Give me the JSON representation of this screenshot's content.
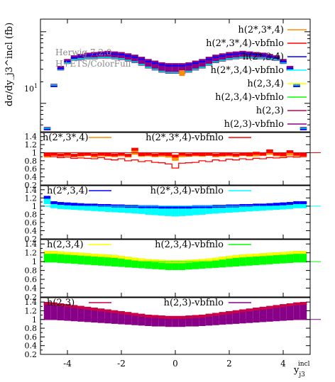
{
  "chart_data": {
    "type": "line",
    "note": "rapidity distribution of tagging-jet-3 with four ratio panels",
    "watermark": [
      "Herwig 7.2.0",
      "H+ETS/ColorFull"
    ],
    "xlabel_main": "y",
    "xlabel_sub": "j3",
    "xlabel_sup": "incl",
    "ylabel": "dσ/dy_j3^incl (fb)",
    "xlim": [
      -5,
      5
    ],
    "xticks": [
      "-4",
      "-2",
      "0",
      "2",
      "4"
    ],
    "xtick_values": [
      -4,
      -2,
      0,
      2,
      4
    ],
    "main": {
      "ylog": true,
      "ylim": [
        4,
        150
      ],
      "ytick_label": "10",
      "ytick_sup": "1",
      "ytick_value": 10,
      "legend": [
        {
          "label": "h(2*,3*,4)",
          "color": "#ff8c00"
        },
        {
          "label": "h(2*,3*,4)-vbfnlo",
          "color": "#ff0000"
        },
        {
          "label": "h(2*,3,4)",
          "color": "#0000ff"
        },
        {
          "label": "h(2*,3,4)-vbfnlo",
          "color": "#00ffff"
        },
        {
          "label": "h(2,3,4)",
          "color": "#ffff00"
        },
        {
          "label": "h(2,3,4)-vbfnlo",
          "color": "#00ff00"
        },
        {
          "label": "h(2,3)",
          "color": "#cc0044"
        },
        {
          "label": "h(2,3)-vbfnlo",
          "color": "#880088"
        }
      ],
      "x": [
        -4.75,
        -4.5,
        -4.25,
        -4.0,
        -3.75,
        -3.5,
        -3.25,
        -3.0,
        -2.75,
        -2.5,
        -2.25,
        -2.0,
        -1.75,
        -1.5,
        -1.25,
        -1.0,
        -0.75,
        -0.5,
        -0.25,
        0.0,
        0.25,
        0.5,
        0.75,
        1.0,
        1.25,
        1.5,
        1.75,
        2.0,
        2.25,
        2.5,
        2.75,
        3.0,
        3.25,
        3.5,
        3.75,
        4.0,
        4.25,
        4.5,
        4.75
      ],
      "series_ref": [
        4.5,
        18,
        32,
        40,
        45,
        47,
        49,
        50,
        51,
        52,
        51,
        50,
        48,
        46,
        43,
        40,
        38,
        36,
        35,
        35,
        35,
        36,
        38,
        40,
        43,
        46,
        48,
        50,
        51,
        52,
        51,
        50,
        49,
        47,
        45,
        40,
        32,
        18,
        4.5
      ],
      "series_low": [
        4.5,
        18,
        30,
        37,
        41,
        42,
        43,
        43,
        44,
        44,
        43,
        42,
        40,
        38,
        35,
        32,
        30,
        28,
        27,
        27,
        27,
        28,
        30,
        32,
        35,
        38,
        40,
        42,
        43,
        44,
        44,
        43,
        43,
        42,
        41,
        37,
        30,
        18,
        4.5
      ]
    },
    "ratios": [
      {
        "ylim": [
          0.2,
          1.5
        ],
        "yticks": [
          "0.2",
          "0.4",
          "0.6",
          "0.8",
          "1",
          "1.2",
          "1.4"
        ],
        "ytick_values": [
          0.2,
          0.4,
          0.6,
          0.8,
          1.0,
          1.2,
          1.4
        ],
        "legend": [
          {
            "label": "h(2*,3*,4)",
            "color": "#ff8c00"
          },
          {
            "label": "h(2*,3*,4)-vbfnlo",
            "color": "#ff0000"
          }
        ],
        "band_upper": [
          0.99,
          1.0,
          0.98,
          1.0,
          0.97,
          0.99,
          1.0,
          0.98,
          1.0,
          0.99,
          0.98,
          1.0,
          0.97,
          1.12,
          0.99,
          1.0,
          0.98,
          1.0,
          0.99,
          0.95,
          1.0,
          0.98,
          1.0,
          0.99,
          1.0,
          0.98,
          0.99,
          1.0,
          0.98,
          1.0,
          0.99,
          1.02,
          1.0,
          1.08,
          1.0,
          0.99,
          1.06,
          1.0,
          0.99
        ],
        "band_lower": [
          0.88,
          0.92,
          0.9,
          0.91,
          0.89,
          0.9,
          0.92,
          0.88,
          0.91,
          0.9,
          0.89,
          0.91,
          0.88,
          0.95,
          0.9,
          0.91,
          0.89,
          0.9,
          0.88,
          0.8,
          0.89,
          0.9,
          0.91,
          0.9,
          0.92,
          0.89,
          0.9,
          0.91,
          0.89,
          0.92,
          0.9,
          0.91,
          0.92,
          0.95,
          0.91,
          0.9,
          0.93,
          0.91,
          0.9
        ],
        "line": [
          0.92,
          0.9,
          0.88,
          0.89,
          0.86,
          0.87,
          0.86,
          0.85,
          0.88,
          0.84,
          0.82,
          0.85,
          0.8,
          0.82,
          0.78,
          0.8,
          0.76,
          0.75,
          0.72,
          0.62,
          0.74,
          0.75,
          0.76,
          0.8,
          0.78,
          0.82,
          0.8,
          0.84,
          0.82,
          0.85,
          0.83,
          0.86,
          0.85,
          0.88,
          0.87,
          0.88,
          0.9,
          0.89,
          0.9
        ],
        "band_color": "#ff8c00",
        "band_color2": "#ff0000",
        "line_color": "#ff0000"
      },
      {
        "ylim": [
          0.2,
          1.5
        ],
        "yticks": [
          "0.2",
          "0.4",
          "0.6",
          "0.8",
          "1",
          "1.2",
          "1.4"
        ],
        "ytick_values": [
          0.2,
          0.4,
          0.6,
          0.8,
          1.0,
          1.2,
          1.4
        ],
        "legend": [
          {
            "label": "h(2*,3,4)",
            "color": "#0000ff"
          },
          {
            "label": "h(2*,3,4)-vbfnlo",
            "color": "#00ffff"
          }
        ],
        "band_upper": [
          1.25,
          1.12,
          1.1,
          1.09,
          1.08,
          1.07,
          1.06,
          1.06,
          1.05,
          1.05,
          1.04,
          1.04,
          1.03,
          1.03,
          1.02,
          1.02,
          1.02,
          1.01,
          1.01,
          1.01,
          1.01,
          1.01,
          1.02,
          1.02,
          1.02,
          1.03,
          1.03,
          1.04,
          1.04,
          1.05,
          1.05,
          1.06,
          1.06,
          1.07,
          1.08,
          1.09,
          1.1,
          1.12,
          1.12
        ],
        "band_lower": [
          1.05,
          0.95,
          0.93,
          0.92,
          0.91,
          0.9,
          0.89,
          0.88,
          0.87,
          0.86,
          0.85,
          0.84,
          0.83,
          0.82,
          0.81,
          0.79,
          0.78,
          0.77,
          0.76,
          0.76,
          0.76,
          0.77,
          0.78,
          0.79,
          0.81,
          0.82,
          0.83,
          0.84,
          0.85,
          0.86,
          0.87,
          0.88,
          0.89,
          0.9,
          0.91,
          0.92,
          0.93,
          0.95,
          0.95
        ],
        "line": [
          1.0,
          0.98,
          0.97,
          0.96,
          0.95,
          0.94,
          0.93,
          0.92,
          0.91,
          0.9,
          0.89,
          0.88,
          0.87,
          0.86,
          0.84,
          0.82,
          0.8,
          0.78,
          0.77,
          0.76,
          0.77,
          0.78,
          0.8,
          0.82,
          0.84,
          0.86,
          0.87,
          0.88,
          0.89,
          0.9,
          0.91,
          0.92,
          0.93,
          0.94,
          0.95,
          0.96,
          0.97,
          0.98,
          1.0
        ],
        "band_color": "#00ffff",
        "band_color2": "#0000ff",
        "line_color": "#00ffff"
      },
      {
        "ylim": [
          0.2,
          1.5
        ],
        "yticks": [
          "0.2",
          "0.4",
          "0.6",
          "0.8",
          "1",
          "1.2",
          "1.4"
        ],
        "ytick_values": [
          0.2,
          0.4,
          0.6,
          0.8,
          1.0,
          1.2,
          1.4
        ],
        "legend": [
          {
            "label": "h(2,3,4)",
            "color": "#ffff00"
          },
          {
            "label": "h(2,3,4)-vbfnlo",
            "color": "#00ff00"
          }
        ],
        "band_upper": [
          1.24,
          1.24,
          1.23,
          1.22,
          1.21,
          1.2,
          1.19,
          1.18,
          1.17,
          1.16,
          1.15,
          1.13,
          1.11,
          1.09,
          1.07,
          1.06,
          1.05,
          1.04,
          1.03,
          1.03,
          1.03,
          1.04,
          1.05,
          1.06,
          1.07,
          1.09,
          1.11,
          1.13,
          1.15,
          1.16,
          1.17,
          1.18,
          1.19,
          1.2,
          1.21,
          1.22,
          1.23,
          1.24,
          1.24
        ],
        "band_lower": [
          0.98,
          0.98,
          0.97,
          0.96,
          0.95,
          0.94,
          0.93,
          0.92,
          0.91,
          0.9,
          0.89,
          0.88,
          0.87,
          0.86,
          0.85,
          0.84,
          0.83,
          0.82,
          0.81,
          0.81,
          0.81,
          0.82,
          0.83,
          0.84,
          0.85,
          0.86,
          0.87,
          0.88,
          0.89,
          0.9,
          0.91,
          0.92,
          0.93,
          0.94,
          0.95,
          0.96,
          0.97,
          0.98,
          0.98
        ],
        "line": [
          1.0,
          1.0,
          1.0,
          1.0,
          1.0,
          1.0,
          1.0,
          1.0,
          1.0,
          1.0,
          1.0,
          1.0,
          1.0,
          1.0,
          0.98,
          0.96,
          0.94,
          0.92,
          0.9,
          0.88,
          0.9,
          0.92,
          0.94,
          0.96,
          0.98,
          1.0,
          1.0,
          1.0,
          1.0,
          1.0,
          1.0,
          1.0,
          1.0,
          1.0,
          1.0,
          1.0,
          1.0,
          1.0,
          1.0
        ],
        "band_color": "#00ff00",
        "band_color2": "#ffff00",
        "line_color": "#00ff00"
      },
      {
        "ylim": [
          0.2,
          1.5
        ],
        "yticks": [
          "0.2",
          "0.4",
          "0.6",
          "0.8",
          "1",
          "1.2",
          "1.4"
        ],
        "ytick_values": [
          0.2,
          0.4,
          0.6,
          0.8,
          1.0,
          1.2,
          1.4
        ],
        "legend": [
          {
            "label": "h(2,3)",
            "color": "#cc0044"
          },
          {
            "label": "h(2,3)-vbfnlo",
            "color": "#880088"
          }
        ],
        "band_upper": [
          1.4,
          1.39,
          1.37,
          1.35,
          1.33,
          1.31,
          1.29,
          1.27,
          1.25,
          1.23,
          1.21,
          1.19,
          1.17,
          1.15,
          1.13,
          1.11,
          1.1,
          1.09,
          1.08,
          1.08,
          1.08,
          1.09,
          1.1,
          1.11,
          1.13,
          1.15,
          1.17,
          1.19,
          1.21,
          1.23,
          1.25,
          1.27,
          1.29,
          1.31,
          1.33,
          1.35,
          1.37,
          1.39,
          1.4
        ],
        "band_lower": [
          1.0,
          0.99,
          0.98,
          0.97,
          0.96,
          0.95,
          0.94,
          0.93,
          0.92,
          0.91,
          0.9,
          0.89,
          0.88,
          0.87,
          0.86,
          0.85,
          0.84,
          0.84,
          0.83,
          0.83,
          0.83,
          0.84,
          0.84,
          0.85,
          0.86,
          0.87,
          0.88,
          0.89,
          0.9,
          0.91,
          0.92,
          0.93,
          0.94,
          0.95,
          0.96,
          0.97,
          0.98,
          0.99,
          1.0
        ],
        "line": [
          1.0,
          1.0,
          1.0,
          1.0,
          1.0,
          1.0,
          1.0,
          1.0,
          1.0,
          1.0,
          1.0,
          1.0,
          1.0,
          1.0,
          1.0,
          1.0,
          1.0,
          1.0,
          1.0,
          1.0,
          1.0,
          1.0,
          1.0,
          1.0,
          1.0,
          1.0,
          1.0,
          1.0,
          1.0,
          1.0,
          1.0,
          1.0,
          1.0,
          1.0,
          1.0,
          1.0,
          1.0,
          1.0,
          1.0
        ],
        "band_color": "#880088",
        "band_color2": "#cc0044",
        "line_color": "#880088"
      }
    ]
  }
}
